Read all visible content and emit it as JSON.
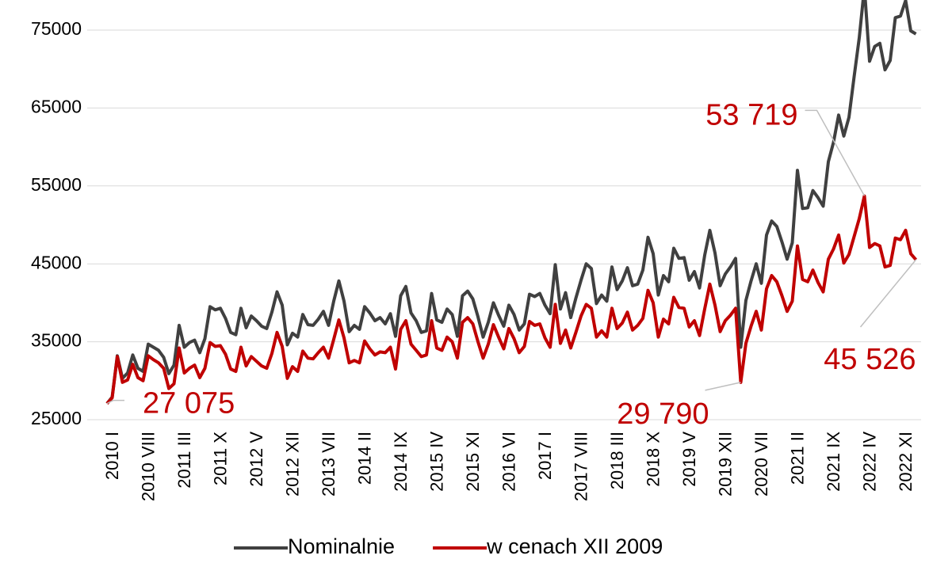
{
  "chart_data": {
    "type": "line",
    "categories": [
      "2010 I",
      null,
      null,
      null,
      null,
      null,
      null,
      "2010 VIII",
      null,
      null,
      null,
      null,
      null,
      null,
      "2011 III",
      null,
      null,
      null,
      null,
      null,
      null,
      "2011 X",
      null,
      null,
      null,
      null,
      null,
      null,
      "2012 V",
      null,
      null,
      null,
      null,
      null,
      null,
      "2012 XII",
      null,
      null,
      null,
      null,
      null,
      null,
      "2013 VII",
      null,
      null,
      null,
      null,
      null,
      null,
      "2014 II",
      null,
      null,
      null,
      null,
      null,
      null,
      "2014 IX",
      null,
      null,
      null,
      null,
      null,
      null,
      "2015 IV",
      null,
      null,
      null,
      null,
      null,
      null,
      "2015 XI",
      null,
      null,
      null,
      null,
      null,
      null,
      "2016 VI",
      null,
      null,
      null,
      null,
      null,
      null,
      "2017 I",
      null,
      null,
      null,
      null,
      null,
      null,
      "2017 VIII",
      null,
      null,
      null,
      null,
      null,
      null,
      "2018 III",
      null,
      null,
      null,
      null,
      null,
      null,
      "2018 X",
      null,
      null,
      null,
      null,
      null,
      null,
      "2019 V",
      null,
      null,
      null,
      null,
      null,
      null,
      "2019 XII",
      null,
      null,
      null,
      null,
      null,
      null,
      "2020 VII",
      null,
      null,
      null,
      null,
      null,
      null,
      "2021 II",
      null,
      null,
      null,
      null,
      null,
      null,
      "2021 IX",
      null,
      null,
      null,
      null,
      null,
      null,
      "2022 IV",
      null,
      null,
      null,
      null,
      null,
      null,
      "2022 XI",
      null,
      null,
      null
    ],
    "series": [
      {
        "name": "Nominalnie",
        "color": "#404040",
        "values": [
          27075,
          27900,
          33200,
          30300,
          31000,
          33300,
          31600,
          31200,
          34700,
          34300,
          33900,
          33000,
          30900,
          32000,
          37100,
          34300,
          34900,
          35200,
          33600,
          35400,
          39500,
          39100,
          39300,
          38000,
          36200,
          35900,
          39300,
          36800,
          38300,
          37700,
          37000,
          36700,
          38800,
          41400,
          39700,
          34600,
          36100,
          35600,
          38500,
          37200,
          37100,
          37900,
          38900,
          37100,
          40200,
          42800,
          40200,
          36300,
          37100,
          36600,
          39500,
          38700,
          37700,
          38100,
          37300,
          38600,
          35700,
          40900,
          42100,
          38700,
          37700,
          36200,
          36400,
          41200,
          37800,
          37500,
          39200,
          38500,
          35700,
          40900,
          41500,
          40500,
          38200,
          35600,
          37500,
          40000,
          38400,
          37000,
          39700,
          38500,
          36500,
          37300,
          41100,
          40800,
          41200,
          39700,
          38600,
          44900,
          39200,
          41300,
          38100,
          40600,
          42900,
          45000,
          44400,
          39900,
          41000,
          40200,
          44600,
          41700,
          42800,
          44500,
          42200,
          42400,
          44200,
          48400,
          46300,
          41000,
          43500,
          42700,
          47000,
          45700,
          45800,
          42900,
          44000,
          41900,
          46100,
          49300,
          46400,
          42200,
          43700,
          44600,
          45700,
          34300,
          40300,
          42800,
          45000,
          42500,
          48700,
          50500,
          49800,
          47800,
          45600,
          47700,
          57000,
          52100,
          52200,
          54400,
          53500,
          52400,
          58100,
          60600,
          64100,
          61400,
          63800,
          69000,
          74000,
          80500,
          71000,
          72900,
          73300,
          69900,
          71100,
          76600,
          76800,
          78800,
          74900,
          74500
        ]
      },
      {
        "name": "w cenach XII 2009",
        "color": "#c00000",
        "values": [
          27075,
          27800,
          33100,
          29800,
          30100,
          32100,
          30400,
          30000,
          33200,
          32700,
          32300,
          31600,
          29000,
          29600,
          34200,
          31000,
          31600,
          32000,
          30400,
          31600,
          34900,
          34400,
          34500,
          33400,
          31500,
          31200,
          34300,
          31900,
          33100,
          32500,
          31900,
          31600,
          33500,
          36200,
          34400,
          30300,
          31800,
          31200,
          33800,
          32900,
          32800,
          33600,
          34300,
          32900,
          35300,
          37800,
          35500,
          32300,
          32600,
          32300,
          35100,
          34100,
          33300,
          33700,
          33600,
          34300,
          31500,
          36600,
          37700,
          34700,
          33900,
          33100,
          33300,
          37700,
          34200,
          33900,
          35600,
          35000,
          32900,
          37500,
          38100,
          37300,
          35000,
          32900,
          34700,
          37200,
          35600,
          34100,
          36700,
          35400,
          33600,
          34400,
          37600,
          37100,
          37300,
          35500,
          34300,
          39800,
          34800,
          36500,
          34200,
          36200,
          38300,
          39800,
          39300,
          35600,
          36400,
          35600,
          39300,
          36700,
          37400,
          38800,
          36500,
          37100,
          38000,
          41600,
          40000,
          35600,
          37900,
          37300,
          40700,
          39400,
          39300,
          36900,
          37700,
          35800,
          39200,
          42400,
          39700,
          36300,
          37700,
          38400,
          39300,
          29790,
          34800,
          37000,
          38900,
          36500,
          41800,
          43500,
          42700,
          40900,
          38900,
          40200,
          47300,
          43000,
          42700,
          44200,
          42600,
          41400,
          45600,
          46900,
          48700,
          45100,
          46200,
          48500,
          50800,
          53719,
          47100,
          47600,
          47300,
          44600,
          44800,
          48300,
          48100,
          49300,
          46300,
          45526
        ],
        "value_labels": [
          "27 075",
          null,
          null,
          null,
          null,
          null,
          null,
          null,
          null,
          null,
          null,
          null,
          null,
          null,
          null,
          null,
          null,
          null,
          null,
          null,
          null,
          null,
          null,
          null,
          null,
          null,
          null,
          null,
          null,
          null,
          null,
          null,
          null,
          null,
          null,
          null,
          null,
          null,
          null,
          null,
          null,
          null,
          null,
          null,
          null,
          null,
          null,
          null,
          null,
          null,
          null,
          null,
          null,
          null,
          null,
          null,
          null,
          null,
          null,
          null,
          null,
          null,
          null,
          null,
          null,
          null,
          null,
          null,
          null,
          null,
          null,
          null,
          null,
          null,
          null,
          null,
          null,
          null,
          null,
          null,
          null,
          null,
          null,
          null,
          null,
          null,
          null,
          null,
          null,
          null,
          null,
          null,
          null,
          null,
          null,
          null,
          null,
          null,
          null,
          null,
          null,
          null,
          null,
          null,
          null,
          null,
          null,
          null,
          null,
          null,
          null,
          null,
          null,
          null,
          null,
          null,
          null,
          null,
          null,
          null,
          null,
          null,
          null,
          "29 790",
          null,
          null,
          null,
          null,
          null,
          null,
          null,
          null,
          null,
          null,
          null,
          null,
          null,
          null,
          null,
          null,
          null,
          null,
          null,
          null,
          null,
          null,
          null,
          "53 719",
          null,
          null,
          null,
          null,
          null,
          null,
          null,
          null,
          null,
          "45 526"
        ]
      }
    ],
    "ylim": [
      25000,
      79000
    ],
    "yticks": [
      25000,
      35000,
      45000,
      55000,
      65000,
      75000
    ],
    "grid": true,
    "legend": "bottom"
  }
}
